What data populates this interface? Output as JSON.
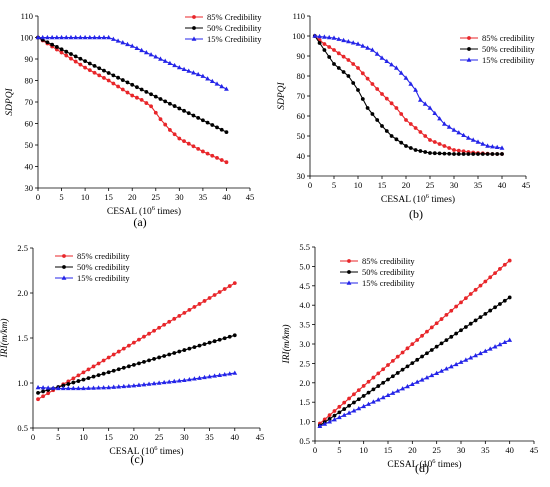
{
  "chart_data": [
    {
      "panel_label": "(a)",
      "type": "line",
      "xlabel": "CESAL (10",
      "xlabel_sup": "6",
      "xlabel_tail": " times)",
      "ylabel": "SDPQI",
      "xlim": [
        0,
        45
      ],
      "ylim": [
        30,
        110
      ],
      "xticks": [
        0,
        5,
        10,
        15,
        20,
        25,
        30,
        35,
        40,
        45
      ],
      "yticks": [
        30,
        40,
        50,
        60,
        70,
        80,
        90,
        100,
        110
      ],
      "tick_decimals": 0,
      "legend_position": "top-right",
      "series": [
        {
          "name": "85% Credibility",
          "color": "#e8262a",
          "marker": "circle",
          "x": [
            0,
            5,
            10,
            15,
            20,
            22,
            24,
            26,
            28,
            30,
            35,
            40
          ],
          "y": [
            100,
            93,
            86,
            80,
            73,
            71,
            68,
            62,
            57,
            53,
            47,
            42
          ]
        },
        {
          "name": "50% Credibility",
          "color": "#000000",
          "marker": "circle",
          "x": [
            0,
            40
          ],
          "y": [
            100,
            56
          ]
        },
        {
          "name": "15% Credibility",
          "color": "#2424e8",
          "marker": "triangle",
          "x": [
            0,
            5,
            10,
            15,
            20,
            25,
            30,
            35,
            40
          ],
          "y": [
            100,
            100,
            100,
            100,
            96,
            91,
            86,
            82,
            76
          ]
        }
      ]
    },
    {
      "panel_label": "(b)",
      "type": "line",
      "xlabel": "CESAL (10",
      "xlabel_sup": "6",
      "xlabel_tail": " times)",
      "ylabel": "SDPQI",
      "xlim": [
        0,
        45
      ],
      "ylim": [
        30,
        110
      ],
      "xticks": [
        0,
        5,
        10,
        15,
        20,
        25,
        30,
        35,
        40,
        45
      ],
      "yticks": [
        30,
        40,
        50,
        60,
        70,
        80,
        90,
        100,
        110
      ],
      "tick_decimals": 0,
      "legend_position": "top-right",
      "series": [
        {
          "name": "85% credibility",
          "color": "#e8262a",
          "marker": "circle",
          "x": [
            1,
            3,
            5,
            8,
            10,
            13,
            15,
            18,
            20,
            23,
            25,
            28,
            30,
            33,
            35,
            38,
            40
          ],
          "y": [
            100,
            96,
            93,
            88,
            84,
            76,
            71,
            64,
            58,
            52,
            48,
            45,
            43,
            42,
            41.5,
            41,
            41
          ]
        },
        {
          "name": "50% credibility",
          "color": "#000000",
          "marker": "circle",
          "x": [
            1,
            3,
            5,
            8,
            10,
            12,
            15,
            17,
            20,
            22,
            25,
            30,
            35,
            40
          ],
          "y": [
            100,
            93,
            86,
            80,
            73,
            64,
            55,
            50,
            45,
            43,
            41.5,
            41,
            41,
            41
          ]
        },
        {
          "name": "15% credibility",
          "color": "#2424e8",
          "marker": "triangle",
          "x": [
            1,
            5,
            10,
            13,
            15,
            18,
            20,
            22,
            23,
            25,
            28,
            30,
            33,
            35,
            37,
            40
          ],
          "y": [
            100,
            99,
            96,
            93,
            89,
            84,
            79,
            73,
            68,
            64,
            56,
            53,
            49,
            47,
            45,
            44
          ]
        }
      ]
    },
    {
      "panel_label": "(c)",
      "type": "line",
      "xlabel": "CESAL (10",
      "xlabel_sup": "6",
      "xlabel_tail": " times)",
      "ylabel": "IRI(m/km)",
      "xlim": [
        0,
        45
      ],
      "ylim": [
        0.5,
        2.5
      ],
      "xticks": [
        0,
        5,
        10,
        15,
        20,
        25,
        30,
        35,
        40,
        45
      ],
      "yticks": [
        0.5,
        1.0,
        1.5,
        2.0,
        2.5
      ],
      "tick_decimals": 1,
      "legend_position": "top-left",
      "series": [
        {
          "name": "85% credibility",
          "color": "#e8262a",
          "marker": "circle",
          "x": [
            1,
            40
          ],
          "y": [
            0.82,
            2.11
          ]
        },
        {
          "name": "50% credibility",
          "color": "#000000",
          "marker": "circle",
          "x": [
            1,
            40
          ],
          "y": [
            0.89,
            1.53
          ]
        },
        {
          "name": "15% credibility",
          "color": "#2424e8",
          "marker": "triangle",
          "x": [
            1,
            5,
            10,
            15,
            20,
            25,
            30,
            35,
            40
          ],
          "y": [
            0.95,
            0.94,
            0.94,
            0.95,
            0.97,
            1.0,
            1.03,
            1.07,
            1.11
          ]
        }
      ]
    },
    {
      "panel_label": "(d)",
      "type": "line",
      "xlabel": "CESAL (10",
      "xlabel_sup": "6",
      "xlabel_tail": " times)",
      "ylabel": "IRI(m/km)",
      "xlim": [
        0,
        45
      ],
      "ylim": [
        0.5,
        5.5
      ],
      "xticks": [
        0,
        5,
        10,
        15,
        20,
        25,
        30,
        35,
        40,
        45
      ],
      "yticks": [
        0.5,
        1.0,
        1.5,
        2.0,
        2.5,
        3.0,
        3.5,
        4.0,
        4.5,
        5.0,
        5.5
      ],
      "tick_decimals": 1,
      "legend_position": "top-left",
      "series": [
        {
          "name": "85% credibility",
          "color": "#e8262a",
          "marker": "circle",
          "x": [
            1,
            40
          ],
          "y": [
            0.95,
            5.15
          ]
        },
        {
          "name": "50% credibility",
          "color": "#000000",
          "marker": "circle",
          "x": [
            1,
            40
          ],
          "y": [
            0.9,
            4.2
          ]
        },
        {
          "name": "15% credibility",
          "color": "#2424e8",
          "marker": "triangle",
          "x": [
            1,
            40
          ],
          "y": [
            0.88,
            3.1
          ]
        }
      ]
    }
  ]
}
